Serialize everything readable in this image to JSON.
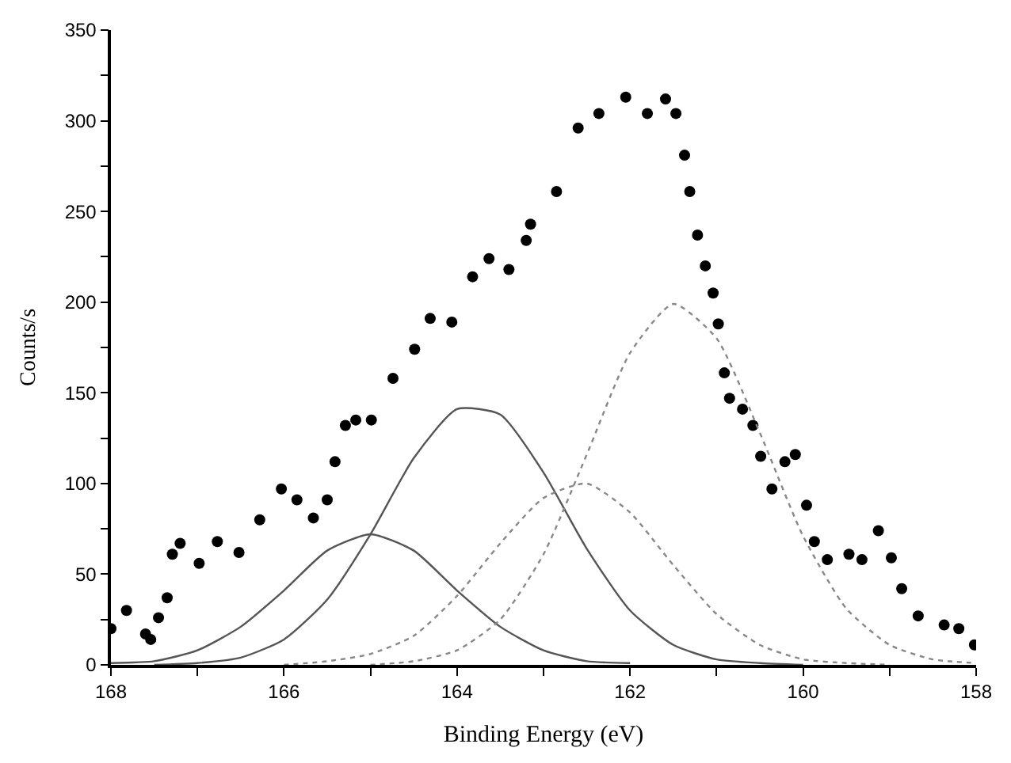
{
  "chart_data": {
    "type": "scatter",
    "xlabel": "Binding Energy (eV)",
    "ylabel": "Counts/s",
    "xlim": [
      168,
      158
    ],
    "ylim": [
      0,
      350
    ],
    "xticks": [
      168,
      {
        "value": 167,
        "label": null
      },
      166,
      {
        "value": 165,
        "label": null
      },
      164,
      {
        "value": 163,
        "label": null
      },
      162,
      {
        "value": 161,
        "label": null
      },
      160,
      {
        "value": 159,
        "label": null
      },
      158
    ],
    "yticks": [
      0,
      {
        "value": 25,
        "label": null
      },
      50,
      {
        "value": 75,
        "label": null
      },
      100,
      {
        "value": 125,
        "label": null
      },
      150,
      {
        "value": 175,
        "label": null
      },
      200,
      {
        "value": 225,
        "label": null
      },
      250,
      {
        "value": 275,
        "label": null
      },
      300,
      {
        "value": 325,
        "label": null
      },
      350
    ],
    "series": [
      {
        "marker": "circle",
        "color": "#000000",
        "x": [
          168.0,
          167.82,
          167.6,
          167.54,
          167.45,
          167.35,
          167.29,
          167.2,
          166.98,
          166.77,
          166.52,
          166.28,
          166.03,
          165.85,
          165.66,
          165.5,
          165.41,
          165.29,
          165.17,
          164.99,
          164.74,
          164.49,
          164.31,
          164.06,
          163.82,
          163.63,
          163.4,
          163.2,
          163.15,
          162.85,
          162.6,
          162.36,
          162.05,
          161.8,
          161.59,
          161.47,
          161.37,
          161.31,
          161.22,
          161.13,
          161.04,
          160.98,
          160.91,
          160.85,
          160.7,
          160.58,
          160.49,
          160.36,
          160.21,
          160.09,
          159.96,
          159.87,
          159.72,
          159.47,
          159.32,
          159.13,
          158.98,
          158.86,
          158.67,
          158.37,
          158.2,
          158.02
        ],
        "values": [
          20,
          30,
          17,
          14,
          26,
          37,
          61,
          67,
          56,
          68,
          62,
          80,
          97,
          91,
          81,
          91,
          112,
          132,
          135,
          135,
          158,
          174,
          191,
          189,
          214,
          224,
          218,
          234,
          243,
          261,
          296,
          304,
          313,
          304,
          312,
          304,
          281,
          261,
          237,
          220,
          205,
          188,
          161,
          147,
          141,
          132,
          115,
          97,
          112,
          116,
          88,
          68,
          58,
          61,
          58,
          74,
          59,
          42,
          27,
          22,
          20,
          11
        ]
      },
      {
        "type": "line",
        "marker": "none",
        "line_style": "solid",
        "color": "#555555",
        "x": [
          168,
          167.5,
          167,
          166.5,
          166,
          165.5,
          165,
          164.5,
          164,
          163.5,
          163,
          162.5,
          162
        ],
        "values": [
          1,
          2,
          8,
          21,
          41,
          63,
          72,
          63,
          41,
          21,
          8,
          2,
          1
        ]
      },
      {
        "type": "line",
        "marker": "none",
        "line_style": "solid",
        "color": "#555555",
        "x": [
          167.5,
          167,
          166.5,
          166,
          165.5,
          165,
          164.5,
          164,
          163.5,
          163,
          162.5,
          162,
          161.5,
          161,
          160.5,
          160
        ],
        "values": [
          0,
          1,
          4,
          14,
          36,
          72,
          114,
          141,
          138,
          106,
          64,
          30,
          11,
          3,
          1,
          0
        ]
      },
      {
        "type": "line",
        "marker": "none",
        "line_style": "dotted",
        "color": "#888888",
        "x": [
          166,
          165.5,
          165,
          164.5,
          164,
          163.5,
          163,
          162.5,
          162,
          161.5,
          161,
          160.5,
          160,
          159.5,
          159
        ],
        "values": [
          0,
          2,
          6,
          16,
          38,
          67,
          92,
          100,
          84,
          55,
          28,
          11,
          3,
          1,
          0
        ]
      },
      {
        "type": "line",
        "marker": "none",
        "line_style": "dotted",
        "color": "#888888",
        "x": [
          165,
          164.5,
          164,
          163.5,
          163,
          162.5,
          162,
          161.5,
          161,
          160.5,
          160,
          159.5,
          159,
          158.5,
          158
        ],
        "values": [
          0,
          2,
          8,
          25,
          61,
          116,
          172,
          199,
          180,
          128,
          71,
          31,
          11,
          3,
          1
        ]
      }
    ]
  }
}
